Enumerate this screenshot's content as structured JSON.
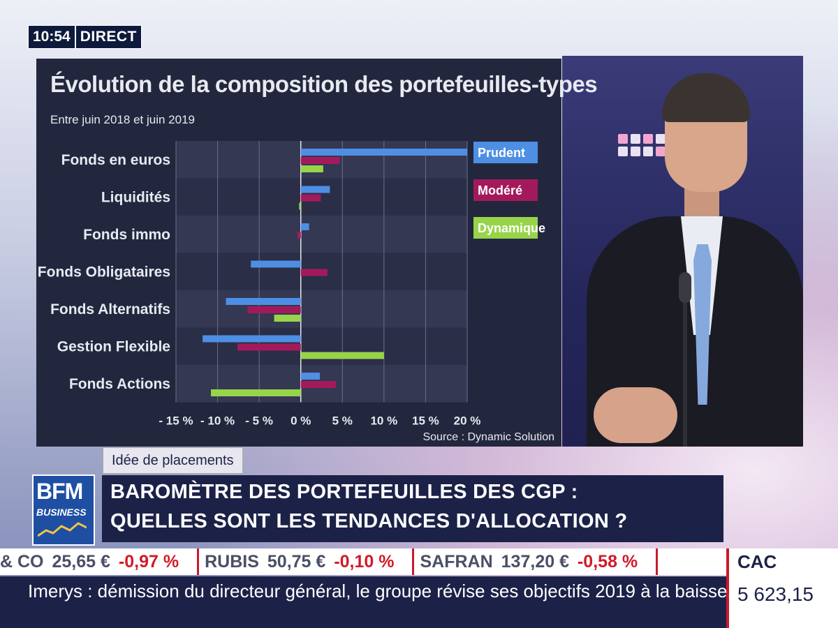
{
  "clock": {
    "time": "10:54",
    "live": "DIRECT"
  },
  "colors": {
    "prudent": "#4e8fe3",
    "modere": "#a31a5c",
    "dynamique": "#97d44a",
    "panel": "#23273e",
    "navy": "#1c2148",
    "red": "#d11a2a"
  },
  "chart_data": {
    "type": "bar",
    "orientation": "horizontal",
    "title": "Évolution de la composition des portefeuilles-types",
    "subtitle": "Entre juin 2018 et juin 2019",
    "source": "Source : Dynamic Solution",
    "categories": [
      "Fonds en euros",
      "Liquidités",
      "Fonds immo",
      "Fonds Obligataires",
      "Fonds Alternatifs",
      "Gestion Flexible",
      "Fonds Actions"
    ],
    "series": [
      {
        "name": "Prudent",
        "color": "#4e8fe3",
        "values": [
          20,
          3.5,
          1,
          -6,
          -9,
          -11.8,
          2.3
        ]
      },
      {
        "name": "Modéré",
        "color": "#a31a5c",
        "values": [
          4.7,
          2.4,
          -0.4,
          3.2,
          -6.4,
          -7.6,
          4.2
        ]
      },
      {
        "name": "Dynamique",
        "color": "#97d44a",
        "values": [
          2.7,
          -0.2,
          0,
          0,
          -3.2,
          10,
          -10.8
        ]
      }
    ],
    "x_ticks": [
      "- 15 %",
      "- 10 %",
      "- 5 %",
      "0 %",
      "5 %",
      "10 %",
      "15 %",
      "20 %"
    ],
    "xlim": [
      -15,
      20
    ],
    "grid": true,
    "legend": "right"
  },
  "rubric": "Idée de placements",
  "logo": {
    "line1": "BFM",
    "line2": "BUSINESS"
  },
  "headline": {
    "line1": "BAROMÈTRE DES PORTEFEUILLES DES CGP :",
    "line2": "QUELLES SONT LES TENDANCES D'ALLOCATION ?"
  },
  "stocks": [
    {
      "name": "& CO",
      "price": "25,65 €",
      "change": "-0,97 %"
    },
    {
      "name": "RUBIS",
      "price": "50,75 €",
      "change": "-0,10 %"
    },
    {
      "name": "SAFRAN",
      "price": "137,20 €",
      "change": "-0,58 %"
    }
  ],
  "index": {
    "name": "CAC",
    "value": "5 623,15"
  },
  "news": "Imerys : démission du directeur général, le groupe révise ses objectifs 2019 à la baisse."
}
